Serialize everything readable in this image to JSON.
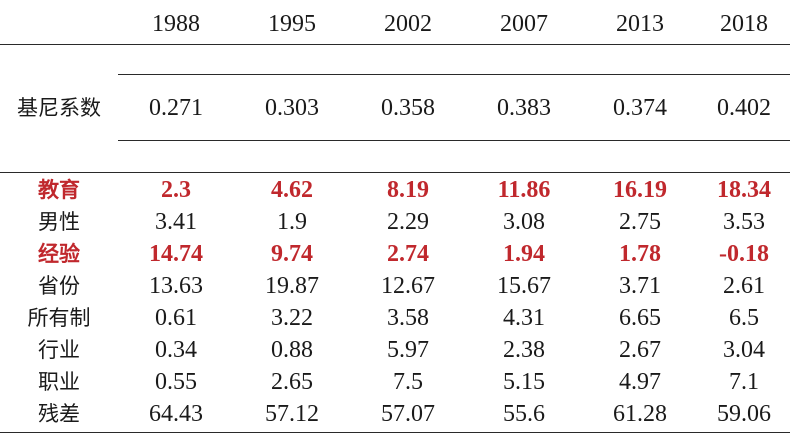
{
  "table": {
    "headers": [
      "",
      "1988",
      "1995",
      "2002",
      "2007",
      "2013",
      "2018"
    ],
    "gini_row": {
      "label": "基尼系数",
      "values": [
        "0.271",
        "0.303",
        "0.358",
        "0.383",
        "0.374",
        "0.402"
      ]
    },
    "rows": [
      {
        "label": "教育",
        "highlight": true,
        "values": [
          "2.3",
          "4.62",
          "8.19",
          "11.86",
          "16.19",
          "18.34"
        ]
      },
      {
        "label": "男性",
        "highlight": false,
        "values": [
          "3.41",
          "1.9",
          "2.29",
          "3.08",
          "2.75",
          "3.53"
        ]
      },
      {
        "label": "经验",
        "highlight": true,
        "values": [
          "14.74",
          "9.74",
          "2.74",
          "1.94",
          "1.78",
          "-0.18"
        ]
      },
      {
        "label": "省份",
        "highlight": false,
        "values": [
          "13.63",
          "19.87",
          "12.67",
          "15.67",
          "3.71",
          "2.61"
        ]
      },
      {
        "label": "所有制",
        "highlight": false,
        "values": [
          "0.61",
          "3.22",
          "3.58",
          "4.31",
          "6.65",
          "6.5"
        ]
      },
      {
        "label": "行业",
        "highlight": false,
        "values": [
          "0.34",
          "0.88",
          "5.97",
          "2.38",
          "2.67",
          "3.04"
        ]
      },
      {
        "label": "职业",
        "highlight": false,
        "values": [
          "0.55",
          "2.65",
          "7.5",
          "5.15",
          "4.97",
          "7.1"
        ]
      },
      {
        "label": "残差",
        "highlight": false,
        "values": [
          "64.43",
          "57.12",
          "57.07",
          "55.6",
          "61.28",
          "59.06"
        ]
      }
    ],
    "highlight_color": "#c0282d"
  }
}
